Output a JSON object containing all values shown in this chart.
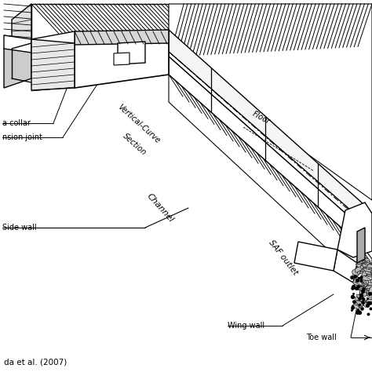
{
  "bg_color": "#ffffff",
  "fig_width": 4.74,
  "fig_height": 4.74,
  "dpi": 100,
  "text_color": "#000000",
  "source_text": "da et al. (2007)",
  "labels": {
    "collar": "a collar",
    "expansion": "nsion joint",
    "vc_line1": "Vertical-Curve",
    "vc_line2": "Section",
    "channel": "Channel",
    "floor": "Floor",
    "side_wall": "Side wall",
    "saf": "SAF outlet",
    "wing": "Wing wall",
    "toe": "Toe wall"
  }
}
